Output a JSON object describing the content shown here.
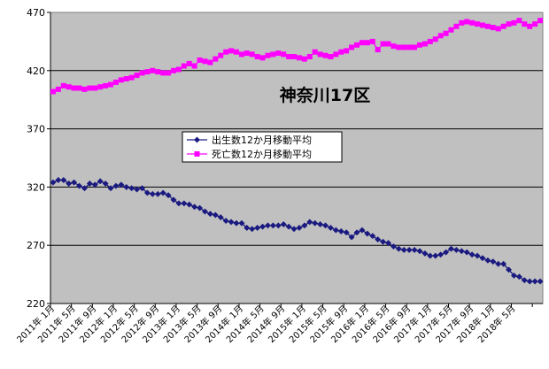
{
  "chart_data": {
    "type": "line",
    "title": "神奈川17区",
    "xlabel": "",
    "ylabel": "",
    "ylim": [
      220,
      470
    ],
    "yticks": [
      220,
      270,
      320,
      370,
      420,
      470
    ],
    "grid": true,
    "legend_position": "center-left",
    "x_tick_labels": [
      "2011年 1月",
      "2011年 5月",
      "2011年 9月",
      "2012年 1月",
      "2012年 5月",
      "2012年 9月",
      "2013年 1月",
      "2013年 5月",
      "2013年 9月",
      "2014年 1月",
      "2014年 5月",
      "2014年 9月",
      "2015年 1月",
      "2015年 5月",
      "2015年 9月",
      "2016年 1月",
      "2016年 5月",
      "2016年 9月",
      "2017年 1月",
      "2017年 5月",
      "2017年 9月",
      "2018年 1月",
      "2018年 5月"
    ],
    "point_count": 94,
    "series": [
      {
        "name": "出生数12か月移動平均",
        "color": "#1a1a80",
        "marker": "diamond",
        "anchors": [
          [
            0,
            324
          ],
          [
            1,
            326
          ],
          [
            2,
            326
          ],
          [
            3,
            323
          ],
          [
            4,
            324
          ],
          [
            5,
            321
          ],
          [
            6,
            319
          ],
          [
            7,
            323
          ],
          [
            8,
            322
          ],
          [
            9,
            325
          ],
          [
            10,
            323
          ],
          [
            11,
            319
          ],
          [
            12,
            321
          ],
          [
            13,
            322
          ],
          [
            14,
            320
          ],
          [
            15,
            319
          ],
          [
            16,
            318
          ],
          [
            17,
            319
          ],
          [
            18,
            315
          ],
          [
            19,
            314
          ],
          [
            20,
            314
          ],
          [
            21,
            315
          ],
          [
            22,
            313
          ],
          [
            23,
            309
          ],
          [
            24,
            306
          ],
          [
            25,
            306
          ],
          [
            26,
            305
          ],
          [
            27,
            303
          ],
          [
            28,
            302
          ],
          [
            29,
            299
          ],
          [
            30,
            297
          ],
          [
            31,
            296
          ],
          [
            32,
            294
          ],
          [
            33,
            291
          ],
          [
            34,
            290
          ],
          [
            35,
            289
          ],
          [
            36,
            289
          ],
          [
            37,
            285
          ],
          [
            38,
            284
          ],
          [
            39,
            285
          ],
          [
            40,
            286
          ],
          [
            41,
            287
          ],
          [
            42,
            287
          ],
          [
            43,
            287
          ],
          [
            44,
            288
          ],
          [
            45,
            286
          ],
          [
            46,
            284
          ],
          [
            47,
            285
          ],
          [
            48,
            287
          ],
          [
            49,
            290
          ],
          [
            50,
            289
          ],
          [
            51,
            288
          ],
          [
            52,
            287
          ],
          [
            53,
            285
          ],
          [
            54,
            283
          ],
          [
            55,
            282
          ],
          [
            56,
            281
          ],
          [
            57,
            277
          ],
          [
            58,
            281
          ],
          [
            59,
            283
          ],
          [
            60,
            280
          ],
          [
            61,
            278
          ],
          [
            62,
            275
          ],
          [
            63,
            273
          ],
          [
            64,
            272
          ],
          [
            65,
            269
          ],
          [
            66,
            267
          ],
          [
            67,
            266
          ],
          [
            68,
            266
          ],
          [
            69,
            266
          ],
          [
            70,
            265
          ],
          [
            71,
            263
          ],
          [
            72,
            261
          ],
          [
            73,
            261
          ],
          [
            74,
            262
          ],
          [
            75,
            264
          ],
          [
            76,
            267
          ],
          [
            77,
            266
          ],
          [
            78,
            265
          ],
          [
            79,
            264
          ],
          [
            80,
            262
          ],
          [
            81,
            261
          ],
          [
            82,
            259
          ],
          [
            83,
            257
          ],
          [
            84,
            256
          ],
          [
            85,
            254
          ],
          [
            86,
            254
          ],
          [
            87,
            249
          ],
          [
            88,
            244
          ],
          [
            89,
            243
          ],
          [
            90,
            240
          ],
          [
            91,
            239
          ],
          [
            92,
            239
          ],
          [
            93,
            239
          ]
        ]
      },
      {
        "name": "死亡数12か月移動平均",
        "color": "#ff00ff",
        "marker": "square",
        "anchors": [
          [
            0,
            402
          ],
          [
            1,
            404
          ],
          [
            2,
            407
          ],
          [
            3,
            406
          ],
          [
            4,
            405
          ],
          [
            5,
            405
          ],
          [
            6,
            404
          ],
          [
            7,
            405
          ],
          [
            8,
            405
          ],
          [
            9,
            406
          ],
          [
            10,
            407
          ],
          [
            11,
            408
          ],
          [
            12,
            410
          ],
          [
            13,
            412
          ],
          [
            14,
            413
          ],
          [
            15,
            414
          ],
          [
            16,
            416
          ],
          [
            17,
            418
          ],
          [
            18,
            419
          ],
          [
            19,
            420
          ],
          [
            20,
            419
          ],
          [
            21,
            418
          ],
          [
            22,
            418
          ],
          [
            23,
            420
          ],
          [
            24,
            421
          ],
          [
            25,
            424
          ],
          [
            26,
            426
          ],
          [
            27,
            424
          ],
          [
            28,
            429
          ],
          [
            29,
            428
          ],
          [
            30,
            427
          ],
          [
            31,
            430
          ],
          [
            32,
            433
          ],
          [
            33,
            436
          ],
          [
            34,
            437
          ],
          [
            35,
            436
          ],
          [
            36,
            434
          ],
          [
            37,
            435
          ],
          [
            38,
            434
          ],
          [
            39,
            432
          ],
          [
            40,
            431
          ],
          [
            41,
            433
          ],
          [
            42,
            434
          ],
          [
            43,
            435
          ],
          [
            44,
            434
          ],
          [
            45,
            432
          ],
          [
            46,
            432
          ],
          [
            47,
            431
          ],
          [
            48,
            430
          ],
          [
            49,
            432
          ],
          [
            50,
            436
          ],
          [
            51,
            434
          ],
          [
            52,
            433
          ],
          [
            53,
            432
          ],
          [
            54,
            434
          ],
          [
            55,
            436
          ],
          [
            56,
            437
          ],
          [
            57,
            440
          ],
          [
            58,
            442
          ],
          [
            59,
            444
          ],
          [
            60,
            444
          ],
          [
            61,
            445
          ],
          [
            62,
            438
          ],
          [
            63,
            443
          ],
          [
            64,
            443
          ],
          [
            65,
            441
          ],
          [
            66,
            440
          ],
          [
            67,
            440
          ],
          [
            68,
            440
          ],
          [
            69,
            440
          ],
          [
            70,
            442
          ],
          [
            71,
            443
          ],
          [
            72,
            445
          ],
          [
            73,
            447
          ],
          [
            74,
            450
          ],
          [
            75,
            452
          ],
          [
            76,
            455
          ],
          [
            77,
            458
          ],
          [
            78,
            461
          ],
          [
            79,
            462
          ],
          [
            80,
            461
          ],
          [
            81,
            460
          ],
          [
            82,
            459
          ],
          [
            83,
            458
          ],
          [
            84,
            457
          ],
          [
            85,
            456
          ],
          [
            86,
            458
          ],
          [
            87,
            460
          ],
          [
            88,
            461
          ],
          [
            89,
            463
          ],
          [
            90,
            460
          ],
          [
            91,
            458
          ],
          [
            92,
            460
          ],
          [
            93,
            463
          ]
        ]
      }
    ]
  }
}
